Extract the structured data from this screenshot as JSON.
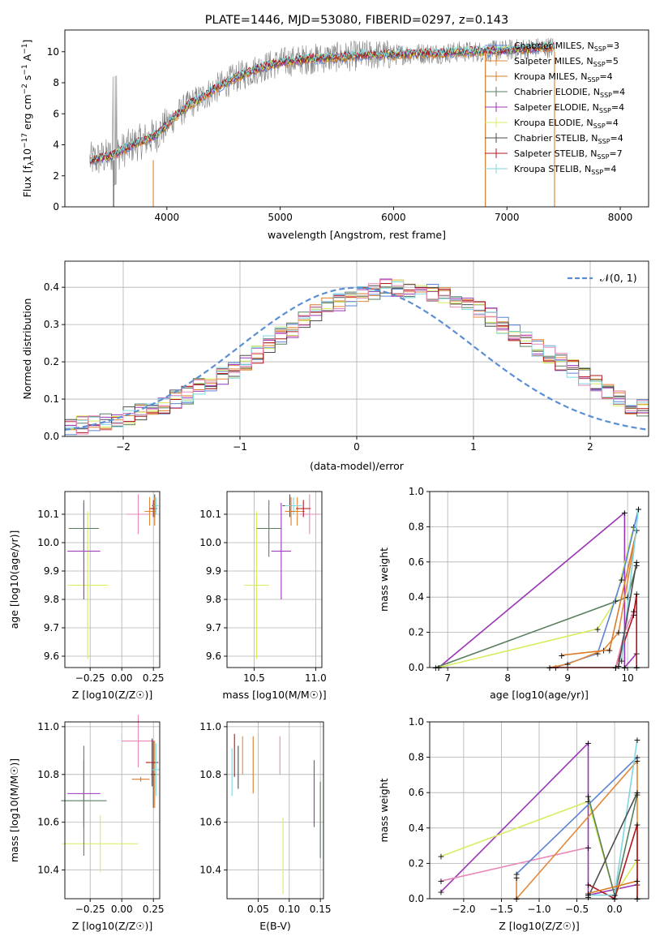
{
  "chart_data": [
    {
      "type": "line",
      "title": "PLATE=1446, MJD=53080, FIBERID=0297, z=0.143",
      "xlabel": "wavelength [Angstrom, rest frame]",
      "ylabel_main": "Flux [f",
      "ylabel_sub": "λ",
      "ylabel_mid": "10",
      "ylabel_sup1": "−17",
      "ylabel_rest": " erg cm",
      "ylabel_sup2": "−2",
      "ylabel_rest2": " s",
      "ylabel_sup3": "−1",
      "ylabel_rest3": " A",
      "ylabel_sup4": "−1",
      "ylabel_end": "]",
      "xlim": [
        3100,
        8250
      ],
      "ylim": [
        0,
        11.4
      ],
      "xticks": [
        4000,
        5000,
        6000,
        7000,
        8000
      ],
      "yticks": [
        0,
        2,
        4,
        6,
        8,
        10
      ],
      "grid": false,
      "legend_placement": "top-right",
      "data_series": {
        "name": "data",
        "color": "#808080",
        "x": [
          3320,
          3400,
          3500,
          3600,
          3700,
          3800,
          3900,
          4000,
          4100,
          4200,
          4300,
          4400,
          4500,
          4600,
          4700,
          4800,
          4900,
          5000,
          5200,
          5400,
          5600,
          5800,
          6000,
          6200,
          6400,
          6600,
          6800,
          7000,
          7200,
          7400
        ],
        "y": [
          3.0,
          3.1,
          3.3,
          3.6,
          4.0,
          4.3,
          4.6,
          5.3,
          6.0,
          6.6,
          7.0,
          7.5,
          7.9,
          8.3,
          8.6,
          8.9,
          9.1,
          9.3,
          9.5,
          9.6,
          9.7,
          9.8,
          9.8,
          9.9,
          9.9,
          10.0,
          10.0,
          10.1,
          10.2,
          10.3
        ]
      },
      "series": [
        {
          "name_pre": "Chabrier MILES, N",
          "name_sub": "SSP",
          "name_post": "=3",
          "color": "#5b84d4"
        },
        {
          "name_pre": "Salpeter MILES, N",
          "name_sub": "SSP",
          "name_post": "=5",
          "color": "#e2893b"
        },
        {
          "name_pre": "Kroupa MILES, N",
          "name_sub": "SSP",
          "name_post": "=4",
          "color": "#d97c29"
        },
        {
          "name_pre": "Chabrier ELODIE, N",
          "name_sub": "SSP",
          "name_post": "=4",
          "color": "#5a7f60"
        },
        {
          "name_pre": "Salpeter ELODIE, N",
          "name_sub": "SSP",
          "name_post": "=4",
          "color": "#9b35b8"
        },
        {
          "name_pre": "Kroupa ELODIE, N",
          "name_sub": "SSP",
          "name_post": "=4",
          "color": "#d8ec5c"
        },
        {
          "name_pre": "Chabrier STELIB, N",
          "name_sub": "SSP",
          "name_post": "=4",
          "color": "#4d4d4d"
        },
        {
          "name_pre": "Salpeter STELIB, N",
          "name_sub": "SSP",
          "name_post": "=7",
          "color": "#b0171f"
        },
        {
          "name_pre": "Kroupa STELIB, N",
          "name_sub": "SSP",
          "name_post": "=4",
          "color": "#7fd7e0"
        }
      ],
      "model_x": [
        3320,
        3400,
        3500,
        3600,
        3700,
        3800,
        3900,
        4000,
        4100,
        4200,
        4300,
        4400,
        4500,
        4600,
        4700,
        4800,
        4900,
        5000,
        5200,
        5400,
        5600,
        5800,
        6000,
        6200,
        6400,
        6600,
        6800,
        7000,
        7200,
        7400
      ],
      "model_y": [
        3.0,
        3.1,
        3.3,
        3.6,
        4.0,
        4.3,
        4.6,
        5.3,
        6.0,
        6.6,
        7.0,
        7.5,
        7.9,
        8.3,
        8.6,
        8.9,
        9.1,
        9.3,
        9.5,
        9.6,
        9.7,
        9.8,
        9.8,
        9.9,
        9.9,
        10.0,
        10.0,
        10.1,
        10.2,
        10.3
      ]
    },
    {
      "type": "histogram",
      "xlabel": "(data-model)/error",
      "ylabel": "Normed distribution",
      "xlim": [
        -2.5,
        2.5
      ],
      "ylim": [
        0,
        0.47
      ],
      "xticks": [
        -2,
        -1,
        0,
        1,
        2
      ],
      "yticks": [
        0.0,
        0.1,
        0.2,
        0.3,
        0.4
      ],
      "grid": true,
      "legend_placement": "top-right",
      "legend_label": "𝒩(0, 1)",
      "reference_curve": {
        "name": "N(0,1)",
        "color": "#5b8fd4",
        "style": "dashed"
      },
      "bin_edges_start": -2.5,
      "bin_width": 0.1,
      "hist_profile": [
        0.025,
        0.03,
        0.035,
        0.04,
        0.05,
        0.055,
        0.065,
        0.075,
        0.085,
        0.1,
        0.11,
        0.13,
        0.14,
        0.16,
        0.18,
        0.2,
        0.22,
        0.25,
        0.27,
        0.29,
        0.31,
        0.33,
        0.35,
        0.36,
        0.37,
        0.385,
        0.39,
        0.4,
        0.4,
        0.395,
        0.39,
        0.385,
        0.375,
        0.365,
        0.355,
        0.34,
        0.32,
        0.3,
        0.28,
        0.26,
        0.24,
        0.22,
        0.2,
        0.18,
        0.16,
        0.14,
        0.12,
        0.1,
        0.085,
        0.075
      ]
    },
    {
      "type": "scatter",
      "xlabel": "Z [log10(Z/Z☉)]",
      "ylabel": "age  [log10(age/yr)]",
      "xlim": [
        -0.45,
        0.3
      ],
      "ylim": [
        9.56,
        10.18
      ],
      "xticks": [
        -0.25,
        0.0,
        0.25
      ],
      "xtick_labels": [
        "−0.25",
        "0.00",
        "0.25"
      ],
      "yticks": [
        9.6,
        9.7,
        9.8,
        9.9,
        10.0,
        10.1
      ],
      "grid": true
    },
    {
      "type": "scatter",
      "xlabel": "mass [log10(M/M☉)]",
      "xlim": [
        10.28,
        11.05
      ],
      "ylim": [
        9.56,
        10.18
      ],
      "xticks": [
        10.5,
        11.0
      ],
      "yticks": [
        9.6,
        9.7,
        9.8,
        9.9,
        10.0,
        10.1
      ],
      "grid": true
    },
    {
      "type": "line",
      "xlabel": "age  [log10(age/yr)]",
      "ylabel": "mass weight",
      "xlim": [
        6.7,
        10.35
      ],
      "ylim": [
        0,
        1.0
      ],
      "xticks": [
        7,
        8,
        9,
        10
      ],
      "yticks": [
        0.0,
        0.2,
        0.4,
        0.6,
        0.8,
        1.0
      ],
      "grid": true
    },
    {
      "type": "scatter",
      "xlabel": "Z [log10(Z/Z☉)]",
      "ylabel": "mass [log10(M/M☉)]",
      "xlim": [
        -0.45,
        0.3
      ],
      "ylim": [
        10.28,
        11.02
      ],
      "xticks": [
        -0.25,
        0.0,
        0.25
      ],
      "xtick_labels": [
        "−0.25",
        "0.00",
        "0.25"
      ],
      "yticks": [
        10.4,
        10.6,
        10.8,
        11.0
      ],
      "grid": true
    },
    {
      "type": "scatter",
      "xlabel": "E(B-V)",
      "xlim": [
        0.0,
        0.155
      ],
      "ylim": [
        10.28,
        11.02
      ],
      "xticks": [
        0.05,
        0.1,
        0.15
      ],
      "yticks": [
        10.4,
        10.6,
        10.8,
        11.0
      ],
      "grid": true
    },
    {
      "type": "line",
      "xlabel": "Z [log10(Z/Z☉)]",
      "ylabel": "mass weight",
      "xlim": [
        -2.45,
        0.45
      ],
      "ylim": [
        0,
        1.0
      ],
      "xticks": [
        -2.0,
        -1.5,
        -1.0,
        -0.5,
        0.0
      ],
      "xtick_labels": [
        "−2.0",
        "−1.5",
        "−1.0",
        "−0.5",
        "0.0"
      ],
      "yticks": [
        0.0,
        0.2,
        0.4,
        0.6,
        0.8,
        1.0
      ],
      "grid": true
    }
  ]
}
